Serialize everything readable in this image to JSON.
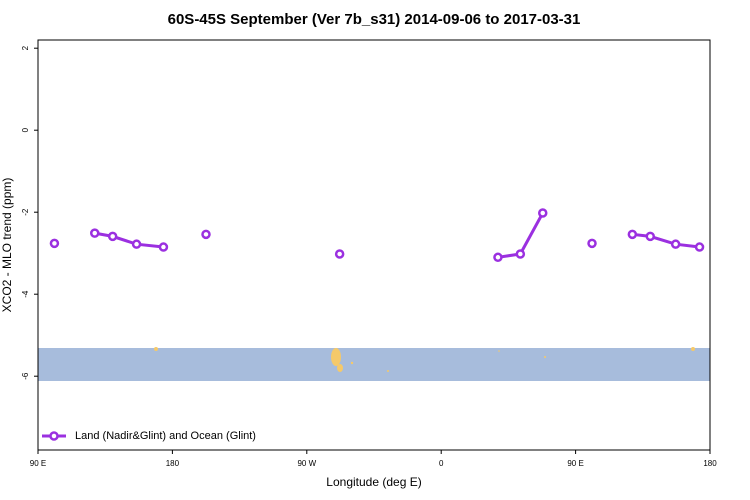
{
  "chart_data": {
    "type": "line",
    "title": "60S-45S September (Ver 7b_s31)   2014-09-06 to 2017-03-31",
    "x_label": "Longitude (deg E)",
    "y_label": "XCO2 - MLO trend (ppm)",
    "x": [
      101,
      null,
      128,
      140,
      156,
      174,
      null,
      202.5,
      null,
      292,
      null,
      398,
      413,
      428,
      null,
      461,
      null,
      488,
      500,
      517,
      533
    ],
    "series": [
      {
        "name": "Land (Nadir&Glint) and Ocean (Glint)",
        "color": "#9b30e0",
        "values": [
          -2.76,
          null,
          -2.51,
          -2.59,
          -2.78,
          -2.85,
          null,
          -2.54,
          null,
          -3.02,
          null,
          -3.1,
          -3.02,
          -2.02,
          null,
          -2.76,
          null,
          -2.54,
          -2.59,
          -2.78,
          -2.85
        ]
      }
    ],
    "xlim": [
      90,
      540
    ],
    "xticks": [
      {
        "value": 90,
        "label": "90 E"
      },
      180,
      {
        "value": 270,
        "label": "90 W"
      },
      {
        "value": 360,
        "label": "0"
      },
      {
        "value": 450,
        "label": "90 E"
      },
      {
        "value": 540,
        "label": "180"
      }
    ],
    "ylim": [
      -7.8,
      2.2
    ],
    "yticks": [
      2,
      0,
      -2,
      -4,
      -6
    ],
    "legend": "bottom-left"
  }
}
